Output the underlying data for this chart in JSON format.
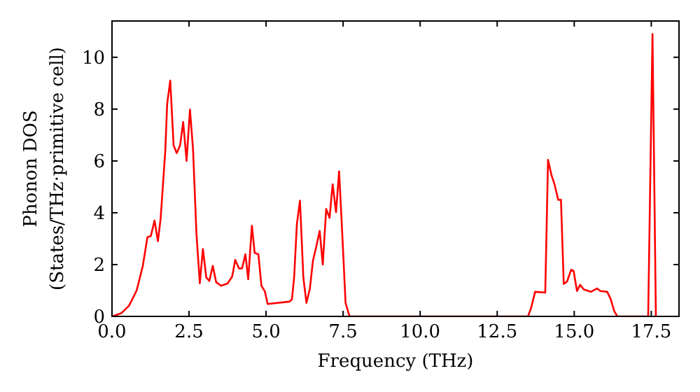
{
  "chart_data": {
    "type": "line",
    "xlabel": "Frequency (THz)",
    "ylabel": "Phonon DOS\n(States/THz·primitive cell)",
    "xlim": [
      0,
      18.4
    ],
    "ylim": [
      0,
      11.4
    ],
    "xticks": [
      {
        "value": 0,
        "label": "0.0"
      },
      {
        "value": 2.5,
        "label": "2.5"
      },
      {
        "value": 5,
        "label": "5.0"
      },
      {
        "value": 7.5,
        "label": "7.5"
      },
      {
        "value": 10,
        "label": "10.0"
      },
      {
        "value": 12.5,
        "label": "12.5"
      },
      {
        "value": 15,
        "label": "15.0"
      },
      {
        "value": 17.5,
        "label": "17.5"
      }
    ],
    "yticks": [
      0,
      2,
      4,
      6,
      8,
      10
    ],
    "grid": false,
    "marker": "none",
    "line_style": "solid",
    "series": [
      {
        "color": "#ff0000",
        "x": [
          0,
          0.3,
          0.55,
          0.8,
          1.0,
          1.15,
          1.26,
          1.38,
          1.49,
          1.58,
          1.73,
          1.79,
          1.89,
          2.0,
          2.1,
          2.21,
          2.31,
          2.42,
          2.53,
          2.63,
          2.74,
          2.85,
          2.95,
          3.06,
          3.16,
          3.27,
          3.38,
          3.54,
          3.75,
          3.9,
          4.0,
          4.12,
          4.22,
          4.33,
          4.42,
          4.54,
          4.63,
          4.75,
          4.85,
          4.96,
          5.05,
          5.76,
          5.84,
          5.91,
          6.0,
          6.1,
          6.21,
          6.31,
          6.42,
          6.52,
          6.63,
          6.74,
          6.84,
          6.95,
          7.06,
          7.16,
          7.27,
          7.37,
          7.48,
          7.58,
          7.71,
          13.5,
          13.6,
          13.73,
          14.06,
          14.15,
          14.26,
          14.36,
          14.48,
          14.57,
          14.66,
          14.77,
          14.9,
          14.98,
          15.09,
          15.19,
          15.31,
          15.54,
          15.74,
          15.85,
          16.07,
          16.18,
          16.3,
          16.4,
          17.4,
          17.54,
          17.65
        ],
        "values": [
          0,
          0.12,
          0.41,
          1.0,
          1.95,
          3.06,
          3.1,
          3.7,
          2.9,
          3.8,
          6.4,
          8.2,
          9.1,
          6.6,
          6.3,
          6.6,
          7.5,
          6.0,
          7.98,
          6.45,
          3.2,
          1.28,
          2.6,
          1.5,
          1.37,
          1.95,
          1.32,
          1.18,
          1.27,
          1.54,
          2.18,
          1.85,
          1.85,
          2.4,
          1.43,
          3.5,
          2.45,
          2.4,
          1.18,
          0.97,
          0.48,
          0.57,
          0.66,
          1.5,
          3.57,
          4.47,
          1.5,
          0.52,
          1.06,
          2.14,
          2.7,
          3.3,
          2.0,
          4.15,
          3.8,
          5.1,
          4.02,
          5.6,
          3.0,
          0.52,
          0,
          0,
          0.32,
          0.95,
          0.92,
          6.04,
          5.46,
          5.1,
          4.5,
          4.5,
          1.25,
          1.35,
          1.8,
          1.76,
          0.98,
          1.22,
          1.04,
          0.95,
          1.08,
          0.98,
          0.95,
          0.68,
          0.2,
          0,
          0,
          10.9,
          0
        ]
      }
    ]
  }
}
